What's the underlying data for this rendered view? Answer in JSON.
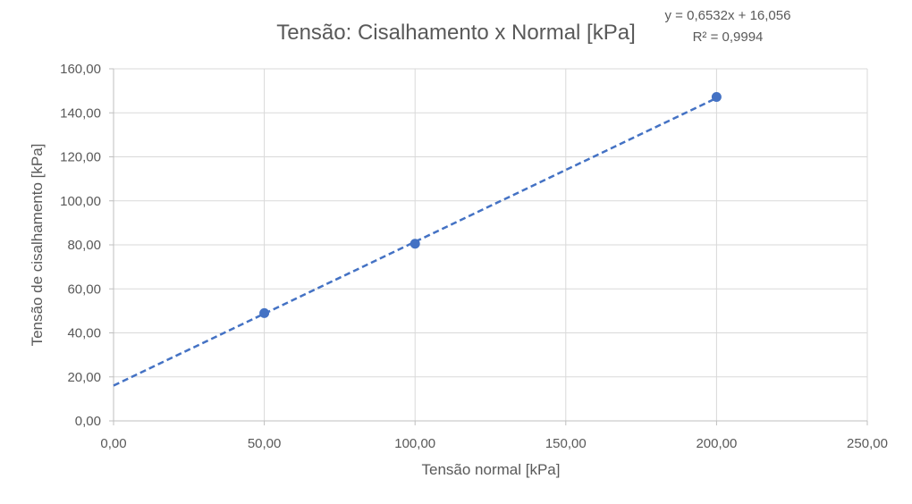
{
  "chart_data": {
    "type": "scatter",
    "title": "Tensão: Cisalhamento x Normal [kPa]",
    "xlabel": "Tensão normal [kPa]",
    "ylabel": "Tensão de cisalhamento [kPa]",
    "xlim": [
      0,
      250
    ],
    "ylim": [
      0,
      160
    ],
    "x_ticks": [
      0,
      50,
      100,
      150,
      200,
      250
    ],
    "y_ticks": [
      0,
      20,
      40,
      60,
      80,
      100,
      120,
      140,
      160
    ],
    "x_tick_labels": [
      "0,00",
      "50,00",
      "100,00",
      "150,00",
      "200,00",
      "250,00"
    ],
    "y_tick_labels": [
      "0,00",
      "20,00",
      "40,00",
      "60,00",
      "80,00",
      "100,00",
      "120,00",
      "140,00",
      "160,00"
    ],
    "grid": true,
    "series": [
      {
        "x": [
          50,
          100,
          200
        ],
        "y": [
          49.0,
          80.5,
          147.2
        ],
        "color": "#4472C4"
      }
    ],
    "trendline": {
      "type": "linear",
      "slope": 0.6532,
      "intercept": 16.056,
      "style": "dashed",
      "color": "#4472C4",
      "x_range": [
        0,
        200
      ],
      "equation_label": "y = 0,6532x + 16,056",
      "r2_label": "R² = 0,9994"
    }
  }
}
